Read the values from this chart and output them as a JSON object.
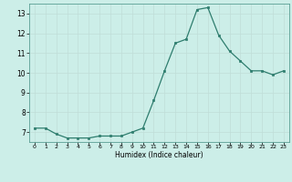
{
  "x": [
    0,
    1,
    2,
    3,
    4,
    5,
    6,
    7,
    8,
    9,
    10,
    11,
    12,
    13,
    14,
    15,
    16,
    17,
    18,
    19,
    20,
    21,
    22,
    23
  ],
  "y": [
    7.2,
    7.2,
    6.9,
    6.7,
    6.7,
    6.7,
    6.8,
    6.8,
    6.8,
    7.0,
    7.2,
    8.6,
    10.1,
    11.5,
    11.7,
    13.2,
    13.3,
    11.9,
    11.1,
    10.6,
    10.1,
    10.1,
    9.9,
    10.1
  ],
  "line_color": "#2e7d6e",
  "marker_color": "#2e7d6e",
  "bg_color": "#cceee8",
  "grid_color": "#c0ddd8",
  "xlabel": "Humidex (Indice chaleur)",
  "ylim": [
    6.5,
    13.5
  ],
  "xlim": [
    -0.5,
    23.5
  ],
  "yticks": [
    7,
    8,
    9,
    10,
    11,
    12,
    13
  ],
  "xticks": [
    0,
    1,
    2,
    3,
    4,
    5,
    6,
    7,
    8,
    9,
    10,
    11,
    12,
    13,
    14,
    15,
    16,
    17,
    18,
    19,
    20,
    21,
    22,
    23
  ]
}
